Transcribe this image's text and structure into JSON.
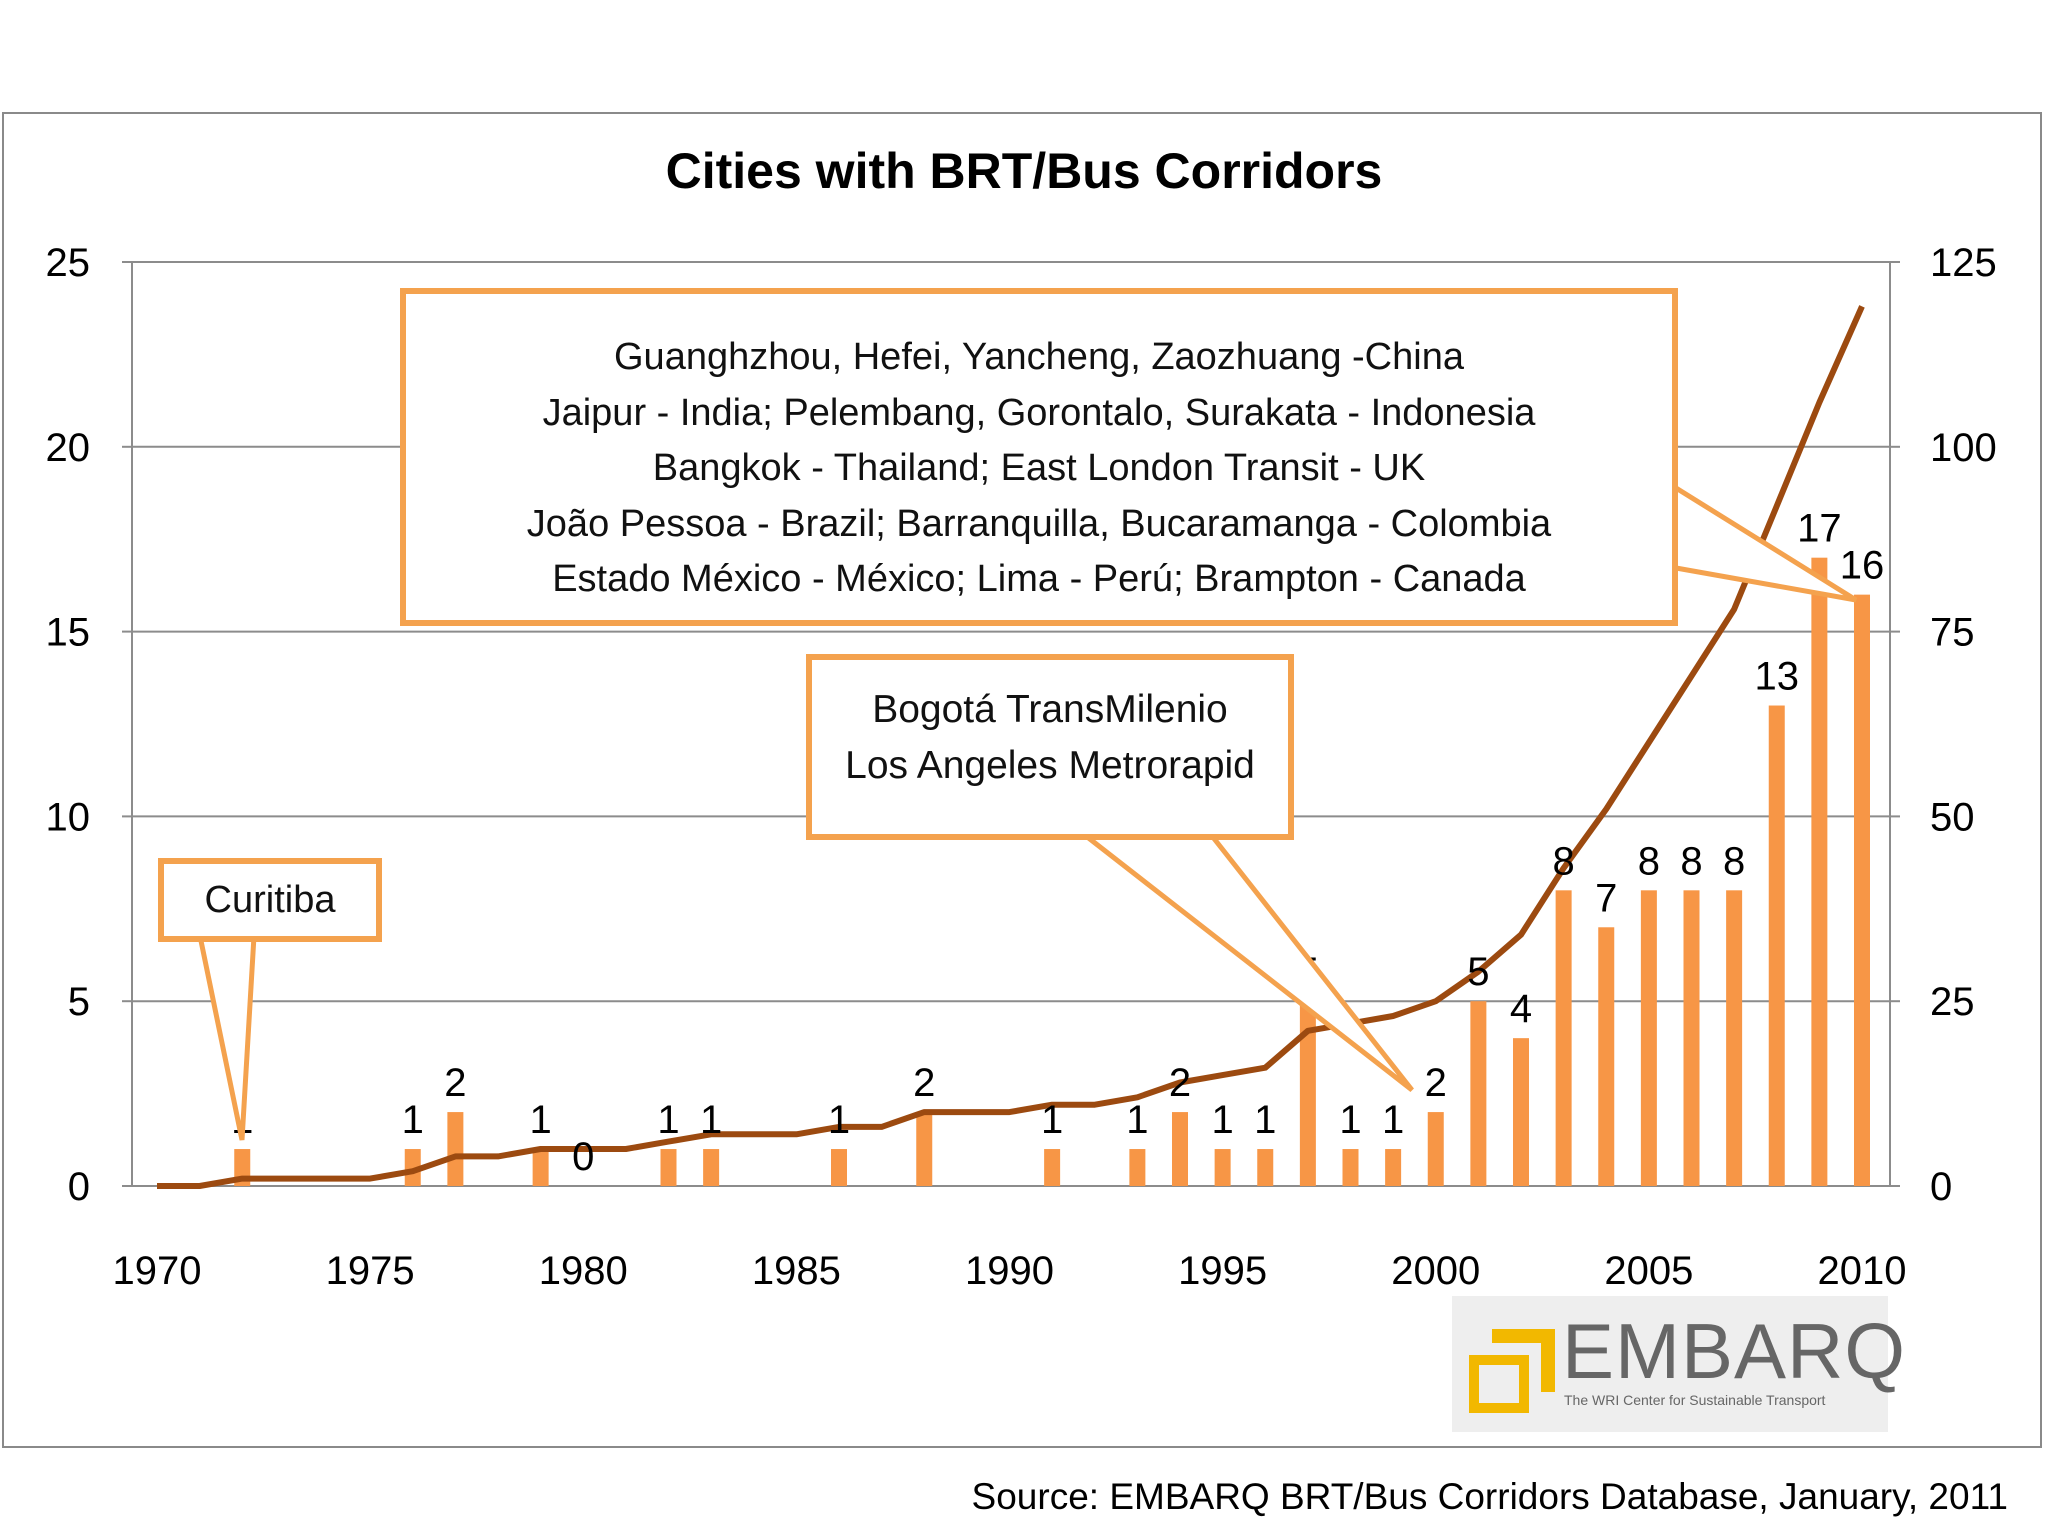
{
  "chart_data": {
    "type": "bar",
    "title": "Cities with BRT/Bus Corridors",
    "x": [
      1970,
      1971,
      1972,
      1973,
      1974,
      1975,
      1976,
      1977,
      1978,
      1979,
      1980,
      1981,
      1982,
      1983,
      1984,
      1985,
      1986,
      1987,
      1988,
      1989,
      1990,
      1991,
      1992,
      1993,
      1994,
      1995,
      1996,
      1997,
      1998,
      1999,
      2000,
      2001,
      2002,
      2003,
      2004,
      2005,
      2006,
      2007,
      2008,
      2009,
      2010
    ],
    "xticks": [
      "1970",
      "1975",
      "1980",
      "1985",
      "1990",
      "1995",
      "2000",
      "2005",
      "2010"
    ],
    "yticks_left": [
      "0",
      "5",
      "10",
      "15",
      "20",
      "25"
    ],
    "yticks_right": [
      "0",
      "25",
      "50",
      "75",
      "100",
      "125"
    ],
    "ylim_left": [
      0,
      25
    ],
    "ylim_right": [
      0,
      125
    ],
    "grid": true,
    "series": [
      {
        "kind": "bar",
        "axis": "left",
        "color": "#f79646",
        "values": [
          0,
          0,
          1,
          0,
          0,
          0,
          1,
          2,
          0,
          1,
          0,
          0,
          1,
          1,
          0,
          0,
          1,
          0,
          2,
          0,
          0,
          1,
          0,
          1,
          2,
          1,
          1,
          5,
          1,
          1,
          2,
          5,
          4,
          8,
          7,
          8,
          8,
          8,
          13,
          17,
          16
        ],
        "labels": [
          "",
          "",
          "1",
          "",
          "",
          "",
          "1",
          "2",
          "",
          "1",
          "0",
          "",
          "1",
          "1",
          "",
          "",
          "1",
          "",
          "2",
          "",
          "",
          "1",
          "",
          "1",
          "2",
          "1",
          "1",
          "5",
          "1",
          "1",
          "2",
          "5",
          "4",
          "8",
          "7",
          "8",
          "8",
          "8",
          "13",
          "17",
          "16"
        ]
      },
      {
        "kind": "line",
        "axis": "right",
        "color": "#9c4a10",
        "values": [
          0,
          0,
          1,
          1,
          1,
          1,
          2,
          4,
          4,
          5,
          5,
          5,
          6,
          7,
          7,
          7,
          8,
          8,
          10,
          10,
          10,
          11,
          11,
          12,
          14,
          15,
          16,
          21,
          22,
          23,
          25,
          29,
          34,
          43,
          51,
          60,
          69,
          78,
          92,
          106,
          119
        ]
      }
    ],
    "callouts": {
      "curitiba": "Curitiba",
      "bogota": [
        "Bogotá TransMilenio",
        "Los Angeles Metrorapid"
      ],
      "cities": [
        "Guanghzhou, Hefei, Yancheng, Zaozhuang -China",
        "Jaipur - India; Pelembang, Gorontalo, Surakata - Indonesia",
        "Bangkok - Thailand; East London Transit - UK",
        "João Pessoa - Brazil; Barranquilla, Bucaramanga - Colombia",
        "Estado México - México; Lima - Perú; Brampton - Canada"
      ]
    },
    "source": "Source: EMBARQ BRT/Bus Corridors Database, January, 2011"
  },
  "logo": {
    "wordmark": "EMBARQ",
    "tagline": "The WRI Center for Sustainable Transport"
  }
}
